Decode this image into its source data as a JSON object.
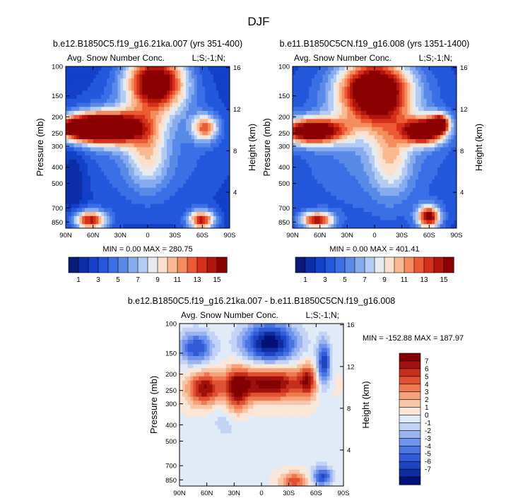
{
  "figure": {
    "title": "DJF"
  },
  "colors": {
    "seq_palette": [
      "#0a1a7a",
      "#0d2ea8",
      "#1240c8",
      "#2357dc",
      "#3a6fe6",
      "#5a8ae8",
      "#86abef",
      "#b3ccf3",
      "#e6ebef",
      "#fde0cc",
      "#fbb991",
      "#f58c5c",
      "#ec5a34",
      "#d6301a",
      "#b1150c",
      "#8b0000"
    ],
    "diff_palette": [
      "#001278",
      "#0f2ca0",
      "#1e44c1",
      "#315bd8",
      "#4a75e3",
      "#6f94eb",
      "#99b4f1",
      "#c2d3f5",
      "#e0ebf7",
      "#fbe6d8",
      "#f9c6a8",
      "#f6a37b",
      "#ef7a52",
      "#df5131",
      "#c62f1c",
      "#a0110c",
      "#820000"
    ],
    "background": "#ffffff",
    "axis": "#000000"
  },
  "chart_data": [
    {
      "type": "heatmap",
      "title": "b.e12.B1850C5.f19_g16.21ka.007 (yrs 351-400)",
      "left_label": "Avg. Snow Number Conc.",
      "right_label": "L;S;-1;N;",
      "xlabel": "",
      "ylabel": "Pressure (mb)",
      "y2label": "Height (km)",
      "x_ticks": [
        "90N",
        "60N",
        "30N",
        "0",
        "30S",
        "60S",
        "90S"
      ],
      "y_ticks": [
        "100",
        "150",
        "200",
        "250",
        "300",
        "400",
        "500",
        "700",
        "850"
      ],
      "y2_ticks": [
        "16",
        "12",
        "8",
        "4"
      ],
      "stats": "MIN =  0.00   MAX = 280.75",
      "colorbar_labels": [
        "1",
        "3",
        "5",
        "7",
        "9",
        "11",
        "13",
        "15"
      ]
    },
    {
      "type": "heatmap",
      "title": "b.e11.B1850C5CN.f19_g16.008 (yrs 1351-1400)",
      "left_label": "Avg. Snow Number Conc.",
      "right_label": "L;S;-1;N;",
      "xlabel": "",
      "ylabel": "Pressure (mb)",
      "y2label": "Height (km)",
      "x_ticks": [
        "90N",
        "60N",
        "30N",
        "0",
        "30S",
        "60S",
        "90S"
      ],
      "y_ticks": [
        "100",
        "150",
        "200",
        "250",
        "300",
        "400",
        "500",
        "700",
        "850"
      ],
      "y2_ticks": [
        "16",
        "12",
        "8",
        "4"
      ],
      "stats": "MIN =  0.00   MAX = 401.41",
      "colorbar_labels": [
        "1",
        "3",
        "5",
        "7",
        "9",
        "11",
        "13",
        "15"
      ]
    },
    {
      "type": "heatmap",
      "title": "b.e12.B1850C5.f19_g16.21ka.007 - b.e11.B1850C5CN.f19_g16.008",
      "left_label": "Avg. Snow Number Conc.",
      "right_label": "L;S;-1;N;",
      "xlabel": "",
      "ylabel": "Pressure (mb)",
      "y2label": "Height (km)",
      "x_ticks": [
        "90N",
        "60N",
        "30N",
        "0",
        "30S",
        "60S",
        "90S"
      ],
      "y_ticks": [
        "100",
        "150",
        "200",
        "250",
        "300",
        "400",
        "500",
        "700",
        "850"
      ],
      "y2_ticks": [
        "16",
        "12",
        "8",
        "4"
      ],
      "stats": "MIN = -152.88   MAX = 187.97",
      "colorbar_labels": [
        "7",
        "6",
        "5",
        "4",
        "3",
        "2",
        "1",
        "0",
        "-1",
        "-2",
        "-3",
        "-4",
        "-5",
        "-6",
        "-7"
      ]
    }
  ]
}
